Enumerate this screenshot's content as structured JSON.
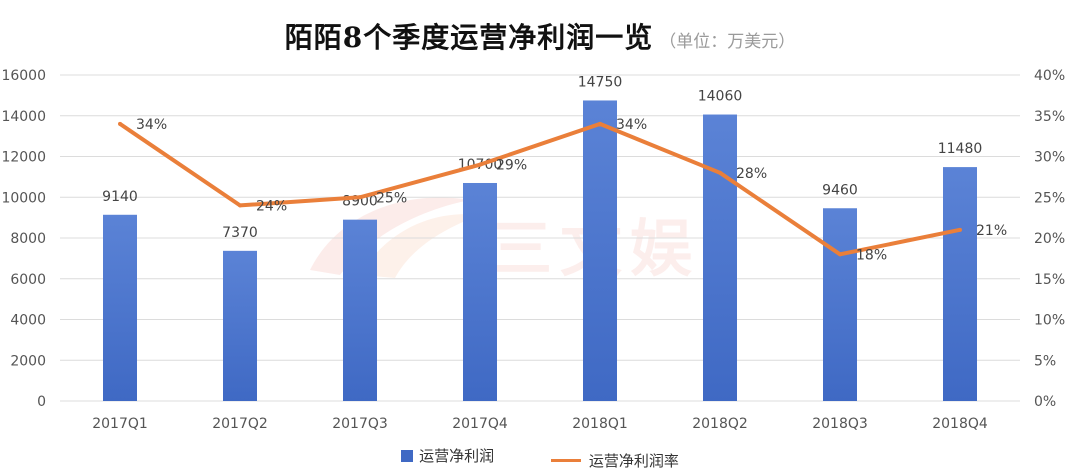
{
  "title": {
    "main": "陌陌8个季度运营净利润一览",
    "unit": "（单位：万美元）"
  },
  "watermark": {
    "text": "三文娱"
  },
  "legend": {
    "bar_label": "运营净利润",
    "line_label": "运营净利润率"
  },
  "colors": {
    "bar": "#3f69c4",
    "line": "#ea7f3a",
    "grid": "#dcdcdc"
  },
  "chart_data": {
    "type": "bar",
    "categories": [
      "2017Q1",
      "2017Q2",
      "2017Q3",
      "2017Q4",
      "2018Q1",
      "2018Q2",
      "2018Q3",
      "2018Q4"
    ],
    "series": [
      {
        "name": "运营净利润",
        "type": "bar",
        "axis": "left",
        "values": [
          9140,
          7370,
          8900,
          10700,
          14750,
          14060,
          9460,
          11480
        ],
        "labels": [
          "9140",
          "7370",
          "8900",
          "10700",
          "14750",
          "14060",
          "9460",
          "11480"
        ]
      },
      {
        "name": "运营净利润率",
        "type": "line",
        "axis": "right",
        "values": [
          34,
          24,
          25,
          29,
          34,
          28,
          18,
          21
        ],
        "labels": [
          "34%",
          "24%",
          "25%",
          "29%",
          "34%",
          "28%",
          "18%",
          "21%"
        ]
      }
    ],
    "ylim_left": [
      0,
      16000
    ],
    "yticks_left": [
      0,
      2000,
      4000,
      6000,
      8000,
      10000,
      12000,
      14000,
      16000
    ],
    "ylim_right": [
      0,
      40
    ],
    "yticks_right": [
      "0%",
      "5%",
      "10%",
      "15%",
      "20%",
      "25%",
      "30%",
      "35%",
      "40%"
    ],
    "grid": true,
    "legend_position": "bottom"
  }
}
